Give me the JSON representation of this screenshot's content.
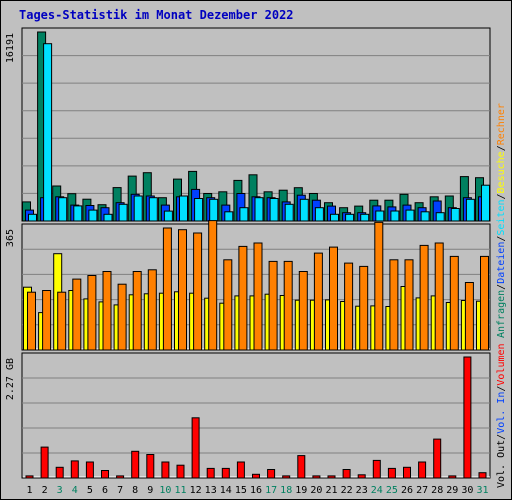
{
  "title": "Tages-Statistik im Monat Dezember 2022",
  "colors": {
    "title": "#0000c0",
    "anfragen": "#008060",
    "dateien": "#0040ff",
    "seiten": "#00e0ff",
    "besuche": "#ffff00",
    "rechner": "#ff8000",
    "volumen": "#ff0000",
    "weekend_label": "#008060",
    "weekday_label": "#000000",
    "slash": "#000000"
  },
  "right_labels": {
    "panel1": [
      {
        "text": "Anfragen",
        "series": "anfragen"
      },
      {
        "text": "/",
        "series": "slash"
      },
      {
        "text": "Dateien",
        "series": "dateien"
      },
      {
        "text": "/",
        "series": "slash"
      },
      {
        "text": "Seiten",
        "series": "seiten"
      },
      {
        "text": "/",
        "series": "slash"
      },
      {
        "text": "Besuche",
        "series": "besuche"
      },
      {
        "text": "/",
        "series": "slash"
      },
      {
        "text": "Rechner",
        "series": "rechner"
      }
    ],
    "panel3": [
      {
        "text": "Vol. Out",
        "series": "weekday_label"
      },
      {
        "text": "/",
        "series": "slash"
      },
      {
        "text": "Vol. In",
        "series": "dateien"
      },
      {
        "text": "/",
        "series": "slash"
      },
      {
        "text": "Volumen",
        "series": "volumen"
      }
    ]
  },
  "chart_data": {
    "type": "bar",
    "title": "Tages-Statistik im Monat Dezember 2022",
    "days": [
      "1",
      "2",
      "3",
      "4",
      "5",
      "6",
      "7",
      "8",
      "9",
      "10",
      "11",
      "12",
      "13",
      "14",
      "15",
      "16",
      "17",
      "18",
      "19",
      "20",
      "21",
      "22",
      "23",
      "24",
      "25",
      "26",
      "27",
      "28",
      "29",
      "30",
      "31"
    ],
    "weekend_days": [
      3,
      4,
      10,
      11,
      17,
      18,
      24,
      25,
      31
    ],
    "panels": [
      {
        "id": "requests",
        "ymax_label": "16191",
        "ymax": 16191,
        "series": [
          {
            "key": "anfragen",
            "values": [
              1640,
              16191,
              3000,
              2340,
              1870,
              1400,
              2860,
              3850,
              4140,
              2000,
              3590,
              4250,
              2360,
              2500,
              3480,
              3960,
              2500,
              2640,
              2850,
              2360,
              1570,
              1140,
              1280,
              1780,
              1780,
              2290,
              1570,
              2070,
              2140,
              3800,
              3710
            ]
          },
          {
            "key": "dateien",
            "values": [
              930,
              2000,
              2070,
              1360,
              1330,
              1140,
              1570,
              2290,
              2140,
              1360,
              2070,
              2710,
              2000,
              1360,
              2360,
              2070,
              2000,
              1640,
              2210,
              1780,
              1280,
              710,
              710,
              1290,
              1210,
              1360,
              1140,
              1710,
              1140,
              2000,
              2070
            ]
          },
          {
            "key": "seiten",
            "values": [
              570,
              15190,
              2000,
              1290,
              930,
              570,
              1430,
              2140,
              2000,
              850,
              2140,
              1930,
              1860,
              790,
              1140,
              2000,
              1930,
              1430,
              1860,
              1140,
              570,
              570,
              570,
              860,
              860,
              930,
              790,
              710,
              1070,
              1860,
              3070
            ]
          }
        ]
      },
      {
        "id": "visits",
        "ymax_label": "365",
        "ymax": 365,
        "series": [
          {
            "key": "besuche",
            "values": [
              188,
              112,
              288,
              178,
              153,
              144,
              135,
              165,
              168,
              170,
              174,
              170,
              155,
              140,
              162,
              162,
              167,
              163,
              149,
              149,
              150,
              145,
              131,
              132,
              130,
              190,
              156,
              162,
              142,
              148,
              146
            ]
          },
          {
            "key": "rechner",
            "values": [
              173,
              178,
              173,
              212,
              223,
              235,
              197,
              235,
              240,
              365,
              360,
              350,
              387,
              270,
              310,
              320,
              265,
              265,
              235,
              290,
              308,
              260,
              250,
              382,
              270,
              270,
              313,
              320,
              280,
              202,
              280
            ]
          }
        ]
      },
      {
        "id": "volume",
        "ymax_label": "2.27 GB",
        "ymax": 2.27,
        "series": [
          {
            "key": "volumen",
            "values": [
              0.04,
              0.58,
              0.2,
              0.32,
              0.3,
              0.14,
              0.04,
              0.5,
              0.44,
              0.3,
              0.24,
              1.13,
              0.18,
              0.18,
              0.3,
              0.07,
              0.16,
              0.04,
              0.42,
              0.04,
              0.04,
              0.16,
              0.06,
              0.33,
              0.18,
              0.2,
              0.3,
              0.73,
              0.04,
              2.27,
              0.1
            ]
          }
        ]
      }
    ]
  }
}
